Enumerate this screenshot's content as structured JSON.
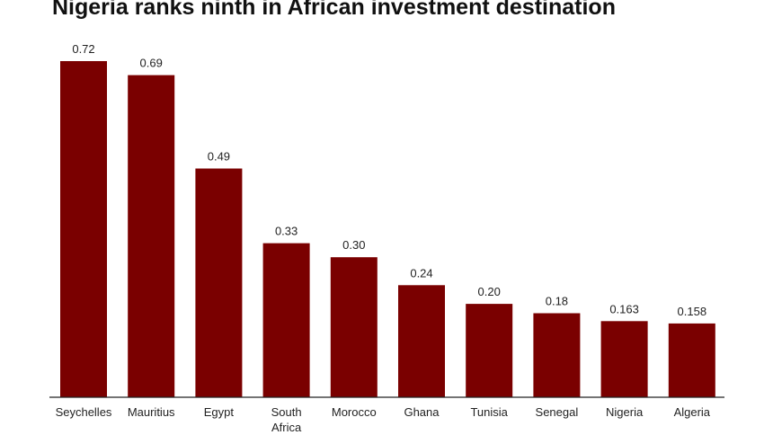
{
  "chart_data": {
    "type": "bar",
    "title": "Nigeria ranks ninth in African investment destination",
    "categories": [
      "Seychelles",
      "Mauritius",
      "Egypt",
      "South Africa",
      "Morocco",
      "Ghana",
      "Tunisia",
      "Senegal",
      "Nigeria",
      "Algeria"
    ],
    "category_lines": [
      [
        "Seychelles"
      ],
      [
        "Mauritius"
      ],
      [
        "Egypt"
      ],
      [
        "South",
        "Africa"
      ],
      [
        "Morocco"
      ],
      [
        "Ghana"
      ],
      [
        "Tunisia"
      ],
      [
        "Senegal"
      ],
      [
        "Nigeria"
      ],
      [
        "Algeria"
      ]
    ],
    "values": [
      0.72,
      0.69,
      0.49,
      0.33,
      0.3,
      0.24,
      0.2,
      0.18,
      0.163,
      0.158
    ],
    "value_labels": [
      "0.72",
      "0.69",
      "0.49",
      "0.33",
      "0.30",
      "0.24",
      "0.20",
      "0.18",
      "0.163",
      "0.158"
    ],
    "xlabel": "",
    "ylabel": "",
    "ylim": [
      0,
      0.72
    ],
    "grid": false,
    "bar_color": "#7a0000"
  }
}
